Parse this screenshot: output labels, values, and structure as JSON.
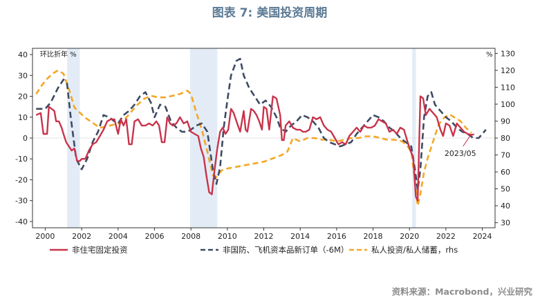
{
  "chart_data": {
    "type": "line",
    "title": "图表 7:  美国投资周期",
    "source": "资料来源：Macrobond，兴业研究",
    "left_axis": {
      "unit": "环比折年 %",
      "ylim": [
        -43,
        43
      ],
      "ticks": [
        40,
        30,
        20,
        10,
        0,
        -10,
        -20,
        -30,
        -40
      ]
    },
    "right_axis": {
      "unit": "%",
      "ylim": [
        27,
        133
      ],
      "ticks": [
        130,
        120,
        110,
        100,
        90,
        80,
        70,
        60,
        50,
        40,
        30
      ]
    },
    "x_axis": {
      "xlim": [
        1999.3,
        2024.7
      ],
      "ticks": [
        "2000",
        "2002",
        "2004",
        "2006",
        "2008",
        "2010",
        "2012",
        "2014",
        "2016",
        "2018",
        "2020",
        "2022",
        "2024"
      ]
    },
    "recessions": [
      [
        2001.2,
        2001.9
      ],
      [
        2007.95,
        2009.45
      ],
      [
        2020.15,
        2020.35
      ]
    ],
    "annotation": {
      "text": "2023/05",
      "x": 2023.4,
      "y": 2.0
    },
    "series": [
      {
        "name": "非住宅固定投资",
        "axis": "left",
        "color": "#c8334a",
        "style": "solid",
        "points": [
          [
            1999.5,
            11
          ],
          [
            1999.75,
            12
          ],
          [
            1999.9,
            2
          ],
          [
            2000.1,
            2
          ],
          [
            2000.2,
            15
          ],
          [
            2000.35,
            14
          ],
          [
            2000.5,
            13
          ],
          [
            2000.6,
            8
          ],
          [
            2000.75,
            8
          ],
          [
            2000.9,
            5
          ],
          [
            2001.0,
            2
          ],
          [
            2001.15,
            -2
          ],
          [
            2001.3,
            -4
          ],
          [
            2001.45,
            -6
          ],
          [
            2001.6,
            -5
          ],
          [
            2001.75,
            -11
          ],
          [
            2001.9,
            -11
          ],
          [
            2002.0,
            -10
          ],
          [
            2002.2,
            -10
          ],
          [
            2002.4,
            -6
          ],
          [
            2002.6,
            -3
          ],
          [
            2002.8,
            -2
          ],
          [
            2003.0,
            1
          ],
          [
            2003.2,
            4
          ],
          [
            2003.4,
            8
          ],
          [
            2003.6,
            9
          ],
          [
            2003.8,
            9
          ],
          [
            2004.0,
            2
          ],
          [
            2004.15,
            9
          ],
          [
            2004.3,
            6
          ],
          [
            2004.45,
            9
          ],
          [
            2004.6,
            -3
          ],
          [
            2004.75,
            -3
          ],
          [
            2004.9,
            8
          ],
          [
            2005.1,
            9
          ],
          [
            2005.3,
            6
          ],
          [
            2005.5,
            6
          ],
          [
            2005.7,
            7
          ],
          [
            2005.9,
            6
          ],
          [
            2006.1,
            8
          ],
          [
            2006.25,
            6
          ],
          [
            2006.4,
            -2
          ],
          [
            2006.55,
            -2
          ],
          [
            2006.7,
            10
          ],
          [
            2006.85,
            7
          ],
          [
            2007.0,
            6
          ],
          [
            2007.2,
            7
          ],
          [
            2007.4,
            10
          ],
          [
            2007.6,
            7
          ],
          [
            2007.8,
            8
          ],
          [
            2008.0,
            3
          ],
          [
            2008.2,
            2
          ],
          [
            2008.4,
            1
          ],
          [
            2008.55,
            -5
          ],
          [
            2008.7,
            -9
          ],
          [
            2008.85,
            -18
          ],
          [
            2009.0,
            -26
          ],
          [
            2009.15,
            -27
          ],
          [
            2009.3,
            -15
          ],
          [
            2009.45,
            -5
          ],
          [
            2009.6,
            3
          ],
          [
            2009.75,
            5
          ],
          [
            2009.9,
            2
          ],
          [
            2010.05,
            4
          ],
          [
            2010.2,
            14
          ],
          [
            2010.35,
            12
          ],
          [
            2010.5,
            8
          ],
          [
            2010.7,
            3
          ],
          [
            2010.9,
            13
          ],
          [
            2011.0,
            4
          ],
          [
            2011.1,
            3
          ],
          [
            2011.3,
            14
          ],
          [
            2011.45,
            13
          ],
          [
            2011.6,
            11
          ],
          [
            2011.75,
            8
          ],
          [
            2011.9,
            4
          ],
          [
            2012.0,
            15
          ],
          [
            2012.15,
            14
          ],
          [
            2012.3,
            4
          ],
          [
            2012.5,
            20
          ],
          [
            2012.7,
            19
          ],
          [
            2012.9,
            11
          ],
          [
            2013.0,
            -1
          ],
          [
            2013.1,
            -1
          ],
          [
            2013.2,
            6
          ],
          [
            2013.4,
            8
          ],
          [
            2013.6,
            5
          ],
          [
            2013.8,
            4
          ],
          [
            2014.0,
            4
          ],
          [
            2014.15,
            3
          ],
          [
            2014.3,
            3
          ],
          [
            2014.5,
            4
          ],
          [
            2014.7,
            10
          ],
          [
            2014.9,
            9
          ],
          [
            2015.1,
            10
          ],
          [
            2015.3,
            6
          ],
          [
            2015.5,
            4
          ],
          [
            2015.7,
            3
          ],
          [
            2015.9,
            0
          ],
          [
            2016.1,
            -3
          ],
          [
            2016.3,
            -2
          ],
          [
            2016.5,
            -3
          ],
          [
            2016.7,
            1
          ],
          [
            2016.9,
            3
          ],
          [
            2017.1,
            5
          ],
          [
            2017.3,
            3
          ],
          [
            2017.5,
            6
          ],
          [
            2017.7,
            5
          ],
          [
            2017.9,
            5
          ],
          [
            2018.1,
            6
          ],
          [
            2018.3,
            9
          ],
          [
            2018.5,
            8
          ],
          [
            2018.7,
            7
          ],
          [
            2018.9,
            3
          ],
          [
            2019.1,
            4
          ],
          [
            2019.3,
            2
          ],
          [
            2019.5,
            5
          ],
          [
            2019.7,
            4
          ],
          [
            2019.9,
            -2
          ],
          [
            2020.05,
            -6
          ],
          [
            2020.2,
            -9
          ],
          [
            2020.35,
            -28
          ],
          [
            2020.45,
            -30
          ],
          [
            2020.6,
            20
          ],
          [
            2020.75,
            19
          ],
          [
            2020.9,
            11
          ],
          [
            2021.1,
            14
          ],
          [
            2021.3,
            12
          ],
          [
            2021.5,
            10
          ],
          [
            2021.7,
            4
          ],
          [
            2021.85,
            1
          ],
          [
            2022.0,
            7
          ],
          [
            2022.2,
            6
          ],
          [
            2022.4,
            1
          ],
          [
            2022.6,
            7
          ],
          [
            2022.8,
            5
          ],
          [
            2023.0,
            3
          ],
          [
            2023.2,
            2
          ],
          [
            2023.4,
            1.5
          ],
          [
            2023.55,
            1.8
          ]
        ]
      },
      {
        "name": "非国防、飞机资本品新订单（-6M）",
        "axis": "left",
        "color": "#3d4a63",
        "style": "dashed",
        "points": [
          [
            1999.5,
            14
          ],
          [
            1999.7,
            14
          ],
          [
            2000.0,
            14
          ],
          [
            2000.3,
            17
          ],
          [
            2000.7,
            24
          ],
          [
            2001.0,
            28
          ],
          [
            2001.2,
            26
          ],
          [
            2001.4,
            10
          ],
          [
            2001.7,
            -10
          ],
          [
            2002.0,
            -15
          ],
          [
            2002.3,
            -10
          ],
          [
            2002.6,
            -2
          ],
          [
            2002.9,
            3
          ],
          [
            2003.2,
            11
          ],
          [
            2003.5,
            10
          ],
          [
            2003.8,
            8
          ],
          [
            2004.0,
            7
          ],
          [
            2004.3,
            11
          ],
          [
            2004.6,
            13
          ],
          [
            2004.9,
            16
          ],
          [
            2005.2,
            20
          ],
          [
            2005.5,
            22
          ],
          [
            2005.8,
            17
          ],
          [
            2006.0,
            10
          ],
          [
            2006.3,
            16
          ],
          [
            2006.6,
            15
          ],
          [
            2006.9,
            8
          ],
          [
            2007.2,
            5
          ],
          [
            2007.5,
            3
          ],
          [
            2007.8,
            3
          ],
          [
            2008.0,
            4
          ],
          [
            2008.3,
            6
          ],
          [
            2008.6,
            7
          ],
          [
            2008.9,
            3
          ],
          [
            2009.2,
            -15
          ],
          [
            2009.4,
            -22
          ],
          [
            2009.6,
            -14
          ],
          [
            2009.8,
            5
          ],
          [
            2010.0,
            18
          ],
          [
            2010.2,
            30
          ],
          [
            2010.5,
            37
          ],
          [
            2010.7,
            38
          ],
          [
            2010.9,
            30
          ],
          [
            2011.2,
            24
          ],
          [
            2011.5,
            20
          ],
          [
            2011.8,
            16
          ],
          [
            2012.1,
            18
          ],
          [
            2012.4,
            15
          ],
          [
            2012.7,
            10
          ],
          [
            2012.9,
            5
          ],
          [
            2013.2,
            3
          ],
          [
            2013.5,
            6
          ],
          [
            2013.8,
            8
          ],
          [
            2014.1,
            11
          ],
          [
            2014.4,
            10
          ],
          [
            2014.7,
            8
          ],
          [
            2015.0,
            5
          ],
          [
            2015.3,
            0
          ],
          [
            2015.6,
            -2
          ],
          [
            2015.9,
            -3
          ],
          [
            2016.2,
            -4
          ],
          [
            2016.5,
            -3
          ],
          [
            2016.8,
            -2
          ],
          [
            2017.1,
            2
          ],
          [
            2017.4,
            5
          ],
          [
            2017.7,
            8
          ],
          [
            2018.0,
            11
          ],
          [
            2018.3,
            10
          ],
          [
            2018.6,
            8
          ],
          [
            2018.9,
            5
          ],
          [
            2019.2,
            3
          ],
          [
            2019.5,
            0
          ],
          [
            2019.8,
            -2
          ],
          [
            2020.1,
            -4
          ],
          [
            2020.3,
            -15
          ],
          [
            2020.45,
            -25
          ],
          [
            2020.6,
            -15
          ],
          [
            2020.8,
            10
          ],
          [
            2021.0,
            20
          ],
          [
            2021.2,
            22
          ],
          [
            2021.4,
            16
          ],
          [
            2021.6,
            14
          ],
          [
            2021.8,
            12
          ],
          [
            2022.0,
            10
          ],
          [
            2022.3,
            8
          ],
          [
            2022.6,
            5
          ],
          [
            2022.9,
            3
          ],
          [
            2023.2,
            2
          ],
          [
            2023.5,
            0
          ],
          [
            2023.8,
            0
          ],
          [
            2024.0,
            2
          ],
          [
            2024.2,
            4
          ]
        ]
      },
      {
        "name": "私人投资/私人储蓄，rhs",
        "axis": "right",
        "color": "#f5a623",
        "style": "dashed",
        "points": [
          [
            1999.5,
            106
          ],
          [
            1999.8,
            111
          ],
          [
            2000.1,
            115
          ],
          [
            2000.4,
            118
          ],
          [
            2000.7,
            120
          ],
          [
            2001.0,
            118
          ],
          [
            2001.3,
            109
          ],
          [
            2001.6,
            98
          ],
          [
            2001.9,
            95
          ],
          [
            2002.2,
            92
          ],
          [
            2002.6,
            89
          ],
          [
            2003.0,
            86
          ],
          [
            2003.4,
            87
          ],
          [
            2003.8,
            88
          ],
          [
            2004.2,
            89
          ],
          [
            2004.6,
            94
          ],
          [
            2005.0,
            99
          ],
          [
            2005.4,
            103
          ],
          [
            2005.8,
            105
          ],
          [
            2006.2,
            104
          ],
          [
            2006.6,
            104
          ],
          [
            2007.0,
            105
          ],
          [
            2007.4,
            106
          ],
          [
            2007.8,
            108
          ],
          [
            2008.0,
            106
          ],
          [
            2008.3,
            95
          ],
          [
            2008.6,
            85
          ],
          [
            2008.9,
            72
          ],
          [
            2009.2,
            58
          ],
          [
            2009.4,
            57
          ],
          [
            2009.7,
            61
          ],
          [
            2010.0,
            62
          ],
          [
            2010.5,
            63
          ],
          [
            2011.0,
            64
          ],
          [
            2011.5,
            65
          ],
          [
            2012.0,
            66
          ],
          [
            2012.5,
            68
          ],
          [
            2013.0,
            70
          ],
          [
            2013.3,
            72
          ],
          [
            2013.6,
            80
          ],
          [
            2014.0,
            78
          ],
          [
            2014.4,
            80
          ],
          [
            2014.8,
            80
          ],
          [
            2015.2,
            79
          ],
          [
            2015.6,
            79
          ],
          [
            2016.0,
            78
          ],
          [
            2016.4,
            79
          ],
          [
            2016.8,
            80
          ],
          [
            2017.2,
            80
          ],
          [
            2017.6,
            81
          ],
          [
            2018.0,
            81
          ],
          [
            2018.4,
            80
          ],
          [
            2018.8,
            79
          ],
          [
            2019.2,
            79
          ],
          [
            2019.6,
            78
          ],
          [
            2019.9,
            75
          ],
          [
            2020.1,
            72
          ],
          [
            2020.3,
            55
          ],
          [
            2020.45,
            40
          ],
          [
            2020.6,
            47
          ],
          [
            2020.8,
            60
          ],
          [
            2021.0,
            68
          ],
          [
            2021.3,
            78
          ],
          [
            2021.6,
            88
          ],
          [
            2021.9,
            92
          ],
          [
            2022.2,
            94
          ],
          [
            2022.5,
            92
          ],
          [
            2022.8,
            90
          ],
          [
            2023.1,
            86
          ],
          [
            2023.4,
            83
          ]
        ]
      }
    ]
  }
}
